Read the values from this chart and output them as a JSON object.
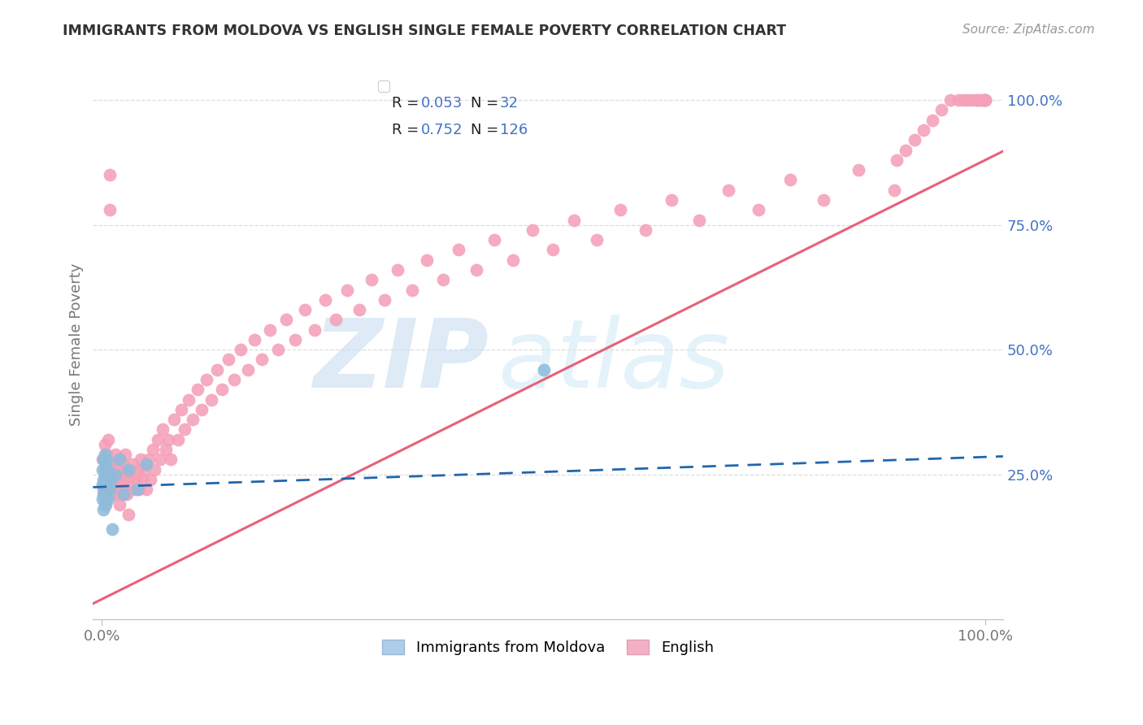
{
  "title": "IMMIGRANTS FROM MOLDOVA VS ENGLISH SINGLE FEMALE POVERTY CORRELATION CHART",
  "source": "Source: ZipAtlas.com",
  "ylabel": "Single Female Poverty",
  "blue_R": 0.053,
  "blue_N": 32,
  "pink_R": 0.752,
  "pink_N": 126,
  "blue_color": "#8fbcdb",
  "pink_color": "#f4a0b8",
  "blue_line_color": "#2166ac",
  "pink_line_color": "#e8607a",
  "watermark_zip_color": "#c8ddf0",
  "watermark_atlas_color": "#d2eaf8",
  "grid_color": "#dddddd",
  "bg_color": "#ffffff",
  "right_tick_color": "#4472c4",
  "title_color": "#333333",
  "source_color": "#999999",
  "axis_label_color": "#777777",
  "legend_edge_color": "#cccccc",
  "blue_legend_face": "#aecde8",
  "pink_legend_face": "#f4b0c5",
  "blue_scatter_x": [
    0.001,
    0.001,
    0.001,
    0.002,
    0.002,
    0.002,
    0.002,
    0.003,
    0.003,
    0.003,
    0.003,
    0.004,
    0.004,
    0.004,
    0.005,
    0.005,
    0.005,
    0.006,
    0.006,
    0.007,
    0.007,
    0.008,
    0.009,
    0.01,
    0.012,
    0.015,
    0.02,
    0.025,
    0.03,
    0.04,
    0.05,
    0.5
  ],
  "blue_scatter_y": [
    0.2,
    0.23,
    0.26,
    0.18,
    0.21,
    0.24,
    0.28,
    0.19,
    0.22,
    0.25,
    0.29,
    0.2,
    0.23,
    0.27,
    0.21,
    0.24,
    0.28,
    0.22,
    0.26,
    0.2,
    0.25,
    0.23,
    0.22,
    0.24,
    0.14,
    0.25,
    0.28,
    0.21,
    0.26,
    0.22,
    0.27,
    0.46
  ],
  "pink_scatter_x": [
    0.001,
    0.002,
    0.003,
    0.003,
    0.004,
    0.005,
    0.005,
    0.006,
    0.007,
    0.007,
    0.008,
    0.009,
    0.009,
    0.01,
    0.01,
    0.011,
    0.012,
    0.013,
    0.014,
    0.015,
    0.015,
    0.016,
    0.017,
    0.018,
    0.019,
    0.02,
    0.021,
    0.022,
    0.023,
    0.024,
    0.025,
    0.026,
    0.027,
    0.028,
    0.03,
    0.031,
    0.033,
    0.035,
    0.037,
    0.039,
    0.04,
    0.042,
    0.044,
    0.046,
    0.048,
    0.05,
    0.053,
    0.055,
    0.058,
    0.06,
    0.063,
    0.066,
    0.069,
    0.072,
    0.075,
    0.078,
    0.082,
    0.086,
    0.09,
    0.094,
    0.098,
    0.103,
    0.108,
    0.113,
    0.118,
    0.124,
    0.13,
    0.136,
    0.143,
    0.15,
    0.157,
    0.165,
    0.173,
    0.181,
    0.19,
    0.199,
    0.209,
    0.219,
    0.23,
    0.241,
    0.253,
    0.265,
    0.278,
    0.291,
    0.305,
    0.32,
    0.335,
    0.351,
    0.368,
    0.386,
    0.404,
    0.424,
    0.444,
    0.465,
    0.487,
    0.51,
    0.534,
    0.56,
    0.587,
    0.615,
    0.645,
    0.676,
    0.709,
    0.743,
    0.779,
    0.817,
    0.856,
    0.897,
    0.9,
    0.91,
    0.92,
    0.93,
    0.94,
    0.95,
    0.96,
    0.97,
    0.975,
    0.98,
    0.985,
    0.99,
    0.993,
    0.996,
    0.998,
    0.999,
    1.0,
    1.0
  ],
  "pink_scatter_y": [
    0.28,
    0.22,
    0.26,
    0.31,
    0.19,
    0.21,
    0.29,
    0.23,
    0.25,
    0.32,
    0.23,
    0.85,
    0.78,
    0.21,
    0.27,
    0.23,
    0.25,
    0.21,
    0.23,
    0.25,
    0.29,
    0.21,
    0.27,
    0.22,
    0.24,
    0.19,
    0.23,
    0.25,
    0.21,
    0.27,
    0.23,
    0.29,
    0.25,
    0.21,
    0.17,
    0.23,
    0.25,
    0.27,
    0.22,
    0.24,
    0.26,
    0.22,
    0.28,
    0.24,
    0.26,
    0.22,
    0.28,
    0.24,
    0.3,
    0.26,
    0.32,
    0.28,
    0.34,
    0.3,
    0.32,
    0.28,
    0.36,
    0.32,
    0.38,
    0.34,
    0.4,
    0.36,
    0.42,
    0.38,
    0.44,
    0.4,
    0.46,
    0.42,
    0.48,
    0.44,
    0.5,
    0.46,
    0.52,
    0.48,
    0.54,
    0.5,
    0.56,
    0.52,
    0.58,
    0.54,
    0.6,
    0.56,
    0.62,
    0.58,
    0.64,
    0.6,
    0.66,
    0.62,
    0.68,
    0.64,
    0.7,
    0.66,
    0.72,
    0.68,
    0.74,
    0.7,
    0.76,
    0.72,
    0.78,
    0.74,
    0.8,
    0.76,
    0.82,
    0.78,
    0.84,
    0.8,
    0.86,
    0.82,
    0.88,
    0.9,
    0.92,
    0.94,
    0.96,
    0.98,
    1.0,
    1.0,
    1.0,
    1.0,
    1.0,
    1.0,
    1.0,
    1.0,
    1.0,
    1.0,
    1.0,
    1.0
  ]
}
